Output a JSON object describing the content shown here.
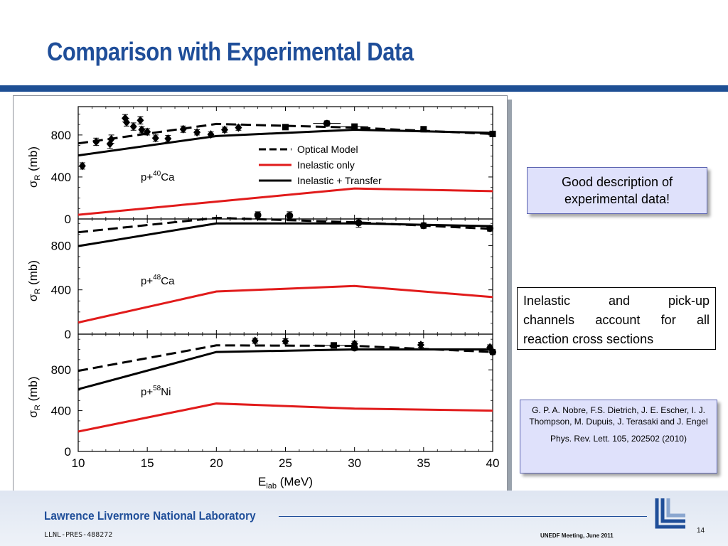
{
  "slide": {
    "title": "Comparison with Experimental Data",
    "callouts": {
      "good": [
        "Good description of",
        "experimental data!"
      ],
      "inelastic": [
        "Inelastic and pick-up",
        "channels account for all",
        "reaction cross sections"
      ],
      "reference": {
        "authors": "G. P. A. Nobre, F.S. Dietrich, J. E. Escher, I. J. Thompson, M. Dupuis, J. Terasaki and J. Engel",
        "citation": "Phys. Rev. Lett. 105, 202502 (2010)"
      }
    },
    "footer": {
      "lab": "Lawrence Livermore National Laboratory",
      "id": "LLNL-PRES-488272",
      "meeting": "UNEDF Meeting, June 2011",
      "page": "14"
    },
    "colors": {
      "title": "#1f4e99",
      "rule": "#1e4f94",
      "inelastic_only": "#e11b1b",
      "transfer": "#000000"
    }
  },
  "chart_data": {
    "type": "line",
    "xlabel": "E",
    "xlabel_sub": "lab",
    "xlabel_unit": "(MeV)",
    "xlim": [
      10,
      40
    ],
    "xticks": [
      10,
      15,
      20,
      25,
      30,
      35,
      40
    ],
    "ylabel_symbol": "σ",
    "ylabel_sub": "R",
    "ylabel_unit": "(mb)",
    "legend": {
      "placement": "top panel, center",
      "entries": [
        {
          "label": "Optical Model",
          "style": "dashed",
          "color": "#000000"
        },
        {
          "label": "Inelastic only",
          "style": "solid",
          "color": "#e11b1b"
        },
        {
          "label": "Inelastic + Transfer",
          "style": "solid",
          "color": "#000000"
        }
      ]
    },
    "panels": [
      {
        "reaction_prefix": "p+",
        "mass_number": "40",
        "element": "Ca",
        "ylim": [
          0,
          1070
        ],
        "yticks": [
          0,
          400,
          800
        ],
        "series": [
          {
            "name": "Optical Model",
            "x": [
              10,
              20,
              30,
              40
            ],
            "y": [
              720,
              905,
              870,
              810
            ]
          },
          {
            "name": "Inelastic only",
            "x": [
              10,
              20,
              30,
              40
            ],
            "y": [
              40,
              165,
              290,
              265
            ]
          },
          {
            "name": "Inelastic + Transfer",
            "x": [
              10,
              20,
              30,
              40
            ],
            "y": [
              605,
              790,
              850,
              820
            ]
          }
        ],
        "points": [
          {
            "x": 10.3,
            "y": 505,
            "err": 30,
            "marker": "diamond"
          },
          {
            "x": 11.3,
            "y": 735,
            "err": 35,
            "marker": "diamond"
          },
          {
            "x": 12.3,
            "y": 715,
            "err": 45,
            "marker": "diamond"
          },
          {
            "x": 12.4,
            "y": 760,
            "err": 40,
            "marker": "diamond"
          },
          {
            "x": 13.4,
            "y": 960,
            "err": 35,
            "marker": "diamond"
          },
          {
            "x": 13.5,
            "y": 920,
            "err": 35,
            "marker": "diamond"
          },
          {
            "x": 14.0,
            "y": 880,
            "err": 35,
            "marker": "diamond"
          },
          {
            "x": 14.5,
            "y": 940,
            "err": 35,
            "marker": "diamond"
          },
          {
            "x": 14.6,
            "y": 850,
            "err": 30,
            "marker": "diamond"
          },
          {
            "x": 15.0,
            "y": 830,
            "err": 30,
            "marker": "diamond"
          },
          {
            "x": 15.6,
            "y": 770,
            "err": 30,
            "marker": "diamond"
          },
          {
            "x": 16.5,
            "y": 765,
            "err": 30,
            "marker": "diamond"
          },
          {
            "x": 17.6,
            "y": 855,
            "err": 30,
            "marker": "diamond"
          },
          {
            "x": 18.6,
            "y": 825,
            "err": 25,
            "marker": "diamond"
          },
          {
            "x": 19.6,
            "y": 805,
            "err": 25,
            "marker": "diamond"
          },
          {
            "x": 20.6,
            "y": 850,
            "err": 25,
            "marker": "diamond"
          },
          {
            "x": 21.6,
            "y": 870,
            "err": 25,
            "marker": "diamond"
          },
          {
            "x": 25.0,
            "y": 875,
            "err": 20,
            "marker": "square"
          },
          {
            "x": 28.0,
            "y": 910,
            "err": 25,
            "xerr": 1.0,
            "marker": "circle"
          },
          {
            "x": 30.0,
            "y": 880,
            "err": 20,
            "xerr": 1.0,
            "marker": "square"
          },
          {
            "x": 35.0,
            "y": 855,
            "err": 20,
            "marker": "square"
          },
          {
            "x": 40.0,
            "y": 810,
            "err": 20,
            "marker": "square"
          }
        ]
      },
      {
        "reaction_prefix": "p+",
        "mass_number": "48",
        "element": "Ca",
        "ylim": [
          0,
          1040
        ],
        "yticks": [
          0,
          400,
          800
        ],
        "series": [
          {
            "name": "Optical Model",
            "x": [
              10,
              20,
              30,
              40
            ],
            "y": [
              920,
              1050,
              1010,
              950
            ]
          },
          {
            "name": "Inelastic only",
            "x": [
              10,
              20,
              30,
              40
            ],
            "y": [
              105,
              385,
              435,
              335
            ]
          },
          {
            "name": "Inelastic + Transfer",
            "x": [
              10,
              20,
              30,
              40
            ],
            "y": [
              795,
              1000,
              1000,
              975
            ]
          }
        ],
        "points": [
          {
            "x": 23.0,
            "y": 1075,
            "err": 30,
            "marker": "circle"
          },
          {
            "x": 25.3,
            "y": 1070,
            "err": 35,
            "marker": "circle"
          },
          {
            "x": 30.3,
            "y": 1005,
            "err": 40,
            "marker": "circle"
          },
          {
            "x": 35.0,
            "y": 980,
            "err": 25,
            "marker": "circle"
          },
          {
            "x": 39.8,
            "y": 955,
            "err": 25,
            "marker": "circle"
          }
        ]
      },
      {
        "reaction_prefix": "p+",
        "mass_number": "58",
        "element": "Ni",
        "ylim": [
          0,
          1150
        ],
        "yticks": [
          0,
          400,
          800
        ],
        "series": [
          {
            "name": "Optical Model",
            "x": [
              10,
              20,
              30,
              40
            ],
            "y": [
              790,
              1040,
              1035,
              975
            ]
          },
          {
            "name": "Inelastic only",
            "x": [
              10,
              20,
              30,
              40
            ],
            "y": [
              195,
              470,
              420,
              400
            ]
          },
          {
            "name": "Inelastic + Transfer",
            "x": [
              10,
              20,
              30,
              40
            ],
            "y": [
              610,
              975,
              1000,
              1000
            ]
          }
        ],
        "points": [
          {
            "x": 22.8,
            "y": 1085,
            "err": 25,
            "marker": "diamond"
          },
          {
            "x": 25.0,
            "y": 1080,
            "err": 25,
            "marker": "diamond"
          },
          {
            "x": 28.5,
            "y": 1040,
            "err": 25,
            "xerr": 1.5,
            "marker": "square"
          },
          {
            "x": 30.0,
            "y": 1055,
            "err": 25,
            "marker": "diamond"
          },
          {
            "x": 30.0,
            "y": 1015,
            "err": 25,
            "marker": "circle"
          },
          {
            "x": 34.8,
            "y": 1045,
            "err": 25,
            "marker": "diamond"
          },
          {
            "x": 39.8,
            "y": 1020,
            "err": 25,
            "marker": "diamond"
          },
          {
            "x": 40.0,
            "y": 975,
            "err": 25,
            "marker": "circle"
          }
        ]
      }
    ]
  }
}
